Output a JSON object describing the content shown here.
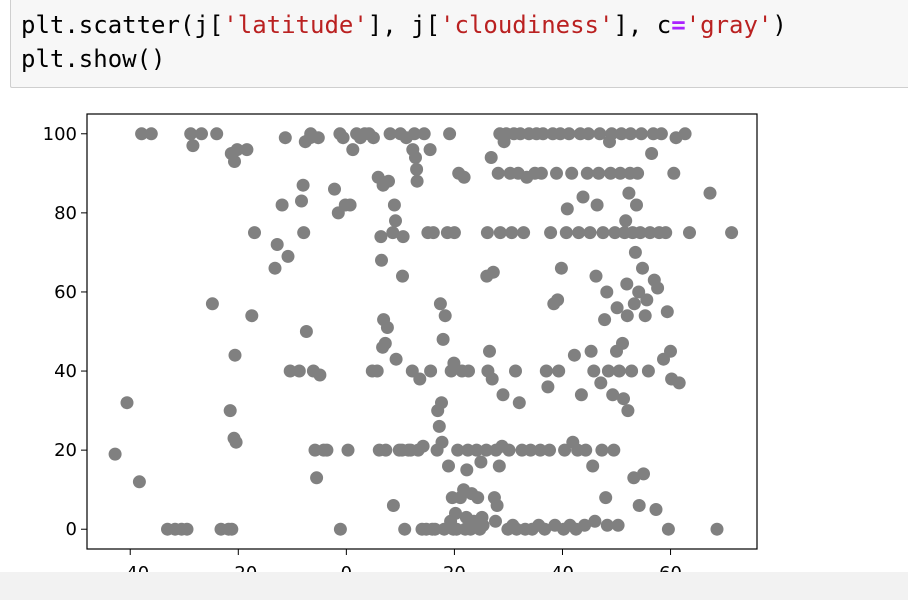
{
  "code": {
    "line1_pre": "plt.scatter(j[",
    "line1_str1": "'latitude'",
    "line1_mid": "], j[",
    "line1_str2": "'cloudiness'",
    "line1_mid2": "], c",
    "line1_op": "=",
    "line1_str3": "'gray'",
    "line1_post": ")",
    "line2": "plt.show()"
  },
  "chart_data": {
    "type": "scatter",
    "title": "",
    "xlabel": "",
    "ylabel": "",
    "xlim": [
      -48,
      76
    ],
    "ylim": [
      -5,
      105
    ],
    "xticks": [
      -40,
      -20,
      0,
      20,
      40,
      60
    ],
    "yticks": [
      0,
      20,
      40,
      60,
      80,
      100
    ],
    "grid": false,
    "point_color": "#808080",
    "points": [
      [
        -42.8,
        19
      ],
      [
        -40.6,
        32
      ],
      [
        -38.3,
        12
      ],
      [
        -37.9,
        100
      ],
      [
        -36.1,
        100
      ],
      [
        -33.1,
        0
      ],
      [
        -31.7,
        0
      ],
      [
        -30.5,
        0
      ],
      [
        -29.5,
        0
      ],
      [
        -28.8,
        100
      ],
      [
        -28.4,
        97
      ],
      [
        -26.8,
        100
      ],
      [
        -24.8,
        57
      ],
      [
        -24.0,
        100
      ],
      [
        -23.2,
        0
      ],
      [
        -21.8,
        0
      ],
      [
        -21.2,
        0
      ],
      [
        -20.8,
        23
      ],
      [
        -20.6,
        44
      ],
      [
        -20.4,
        22
      ],
      [
        -21.3,
        95
      ],
      [
        -20.7,
        93
      ],
      [
        -20.2,
        96
      ],
      [
        -18.4,
        96
      ],
      [
        -17.5,
        54
      ],
      [
        -17.0,
        75
      ],
      [
        -21.5,
        30
      ],
      [
        -13.2,
        66
      ],
      [
        -12.8,
        72
      ],
      [
        -11.9,
        82
      ],
      [
        -11.3,
        99
      ],
      [
        -10.8,
        69
      ],
      [
        -10.4,
        40
      ],
      [
        -8.7,
        40
      ],
      [
        -8.3,
        83
      ],
      [
        -8.0,
        87
      ],
      [
        -7.9,
        75
      ],
      [
        -7.4,
        50
      ],
      [
        -7.6,
        98
      ],
      [
        -6.6,
        100
      ],
      [
        -6.1,
        40
      ],
      [
        -6.7,
        99
      ],
      [
        -5.8,
        20
      ],
      [
        -5.5,
        13
      ],
      [
        -5.2,
        99
      ],
      [
        -4.9,
        39
      ],
      [
        -4.2,
        20
      ],
      [
        -3.6,
        20
      ],
      [
        -2.2,
        86
      ],
      [
        -1.5,
        80
      ],
      [
        -1.2,
        100
      ],
      [
        -1.1,
        0
      ],
      [
        -0.6,
        99
      ],
      [
        -0.2,
        82
      ],
      [
        0.7,
        82
      ],
      [
        0.3,
        20
      ],
      [
        1.2,
        96
      ],
      [
        1.9,
        100
      ],
      [
        2.6,
        99
      ],
      [
        3.4,
        100
      ],
      [
        4.2,
        100
      ],
      [
        4.8,
        40
      ],
      [
        5.0,
        99
      ],
      [
        5.7,
        40
      ],
      [
        5.9,
        89
      ],
      [
        6.1,
        20
      ],
      [
        6.4,
        74
      ],
      [
        6.7,
        46
      ],
      [
        6.8,
        87
      ],
      [
        7.2,
        47
      ],
      [
        6.5,
        68
      ],
      [
        6.9,
        53
      ],
      [
        7.3,
        20
      ],
      [
        7.8,
        88
      ],
      [
        7.6,
        51
      ],
      [
        8.1,
        100
      ],
      [
        8.6,
        75
      ],
      [
        8.9,
        82
      ],
      [
        8.7,
        6
      ],
      [
        9.2,
        43
      ],
      [
        9.1,
        78
      ],
      [
        9.8,
        20
      ],
      [
        10.0,
        100
      ],
      [
        10.3,
        20
      ],
      [
        10.5,
        74
      ],
      [
        10.8,
        0
      ],
      [
        10.4,
        64
      ],
      [
        11.1,
        99
      ],
      [
        11.5,
        20
      ],
      [
        11.9,
        20
      ],
      [
        12.2,
        40
      ],
      [
        12.6,
        100
      ],
      [
        12.3,
        96
      ],
      [
        12.8,
        94
      ],
      [
        13.0,
        91
      ],
      [
        13.3,
        20
      ],
      [
        13.6,
        38
      ],
      [
        13.1,
        88
      ],
      [
        14.2,
        21
      ],
      [
        14.0,
        0
      ],
      [
        14.4,
        100
      ],
      [
        14.8,
        0
      ],
      [
        15.1,
        75
      ],
      [
        15.5,
        96
      ],
      [
        15.6,
        40
      ],
      [
        15.9,
        0
      ],
      [
        16.1,
        75
      ],
      [
        16.4,
        0
      ],
      [
        16.8,
        20
      ],
      [
        16.9,
        30
      ],
      [
        17.2,
        26
      ],
      [
        17.4,
        57
      ],
      [
        17.6,
        32
      ],
      [
        17.7,
        22
      ],
      [
        17.9,
        48
      ],
      [
        18.1,
        0
      ],
      [
        18.3,
        54
      ],
      [
        18.7,
        75
      ],
      [
        18.9,
        16
      ],
      [
        19.1,
        100
      ],
      [
        19.3,
        2
      ],
      [
        19.4,
        40
      ],
      [
        19.6,
        8
      ],
      [
        19.8,
        0
      ],
      [
        19.9,
        42
      ],
      [
        20.0,
        75
      ],
      [
        20.2,
        4
      ],
      [
        20.4,
        0
      ],
      [
        20.6,
        20
      ],
      [
        20.8,
        90
      ],
      [
        21.1,
        8
      ],
      [
        21.4,
        40
      ],
      [
        21.7,
        10
      ],
      [
        21.8,
        89
      ],
      [
        22.0,
        0
      ],
      [
        22.2,
        3
      ],
      [
        22.3,
        15
      ],
      [
        22.5,
        20
      ],
      [
        22.6,
        40
      ],
      [
        23.0,
        0
      ],
      [
        23.2,
        9
      ],
      [
        23.6,
        2
      ],
      [
        23.9,
        1
      ],
      [
        24.1,
        20
      ],
      [
        24.3,
        8
      ],
      [
        24.7,
        0
      ],
      [
        24.9,
        17
      ],
      [
        25.1,
        3
      ],
      [
        25.3,
        1
      ],
      [
        25.9,
        20
      ],
      [
        26.0,
        64
      ],
      [
        26.1,
        75
      ],
      [
        26.2,
        40
      ],
      [
        26.5,
        45
      ],
      [
        26.8,
        94
      ],
      [
        27.0,
        38
      ],
      [
        27.2,
        65
      ],
      [
        27.4,
        8
      ],
      [
        27.6,
        2
      ],
      [
        27.7,
        20
      ],
      [
        27.9,
        6
      ],
      [
        28.1,
        90
      ],
      [
        28.3,
        16
      ],
      [
        28.5,
        75
      ],
      [
        28.4,
        100
      ],
      [
        28.8,
        21
      ],
      [
        29.0,
        34
      ],
      [
        29.2,
        98
      ],
      [
        29.6,
        100
      ],
      [
        29.9,
        0
      ],
      [
        30.1,
        20
      ],
      [
        30.3,
        90
      ],
      [
        30.6,
        75
      ],
      [
        30.8,
        1
      ],
      [
        31.0,
        100
      ],
      [
        31.3,
        40
      ],
      [
        31.5,
        0
      ],
      [
        31.8,
        90
      ],
      [
        32.0,
        32
      ],
      [
        32.2,
        100
      ],
      [
        32.5,
        20
      ],
      [
        32.8,
        75
      ],
      [
        33.1,
        0
      ],
      [
        33.4,
        89
      ],
      [
        33.8,
        100
      ],
      [
        34.1,
        20
      ],
      [
        34.4,
        0
      ],
      [
        34.9,
        90
      ],
      [
        35.2,
        100
      ],
      [
        35.6,
        1
      ],
      [
        35.9,
        20
      ],
      [
        36.1,
        90
      ],
      [
        36.4,
        100
      ],
      [
        36.7,
        0
      ],
      [
        37.0,
        40
      ],
      [
        37.3,
        36
      ],
      [
        37.6,
        20
      ],
      [
        37.8,
        75
      ],
      [
        38.2,
        100
      ],
      [
        38.4,
        57
      ],
      [
        38.6,
        1
      ],
      [
        38.9,
        90
      ],
      [
        39.1,
        58
      ],
      [
        39.3,
        40
      ],
      [
        39.6,
        100
      ],
      [
        39.8,
        66
      ],
      [
        40.2,
        0
      ],
      [
        40.4,
        20
      ],
      [
        40.7,
        75
      ],
      [
        40.9,
        81
      ],
      [
        41.2,
        100
      ],
      [
        41.4,
        1
      ],
      [
        41.7,
        90
      ],
      [
        41.9,
        22
      ],
      [
        42.2,
        44
      ],
      [
        42.5,
        0
      ],
      [
        42.8,
        20
      ],
      [
        43.0,
        75
      ],
      [
        43.3,
        100
      ],
      [
        43.5,
        34
      ],
      [
        43.8,
        84
      ],
      [
        44.1,
        1
      ],
      [
        44.3,
        20
      ],
      [
        44.6,
        90
      ],
      [
        44.8,
        100
      ],
      [
        45.1,
        75
      ],
      [
        45.3,
        45
      ],
      [
        45.6,
        16
      ],
      [
        45.8,
        40
      ],
      [
        46.0,
        2
      ],
      [
        46.2,
        64
      ],
      [
        46.4,
        82
      ],
      [
        46.7,
        90
      ],
      [
        46.9,
        100
      ],
      [
        47.1,
        37
      ],
      [
        47.3,
        20
      ],
      [
        47.5,
        75
      ],
      [
        47.8,
        53
      ],
      [
        48.0,
        8
      ],
      [
        48.2,
        60
      ],
      [
        48.3,
        1
      ],
      [
        48.5,
        40
      ],
      [
        48.7,
        98
      ],
      [
        48.9,
        90
      ],
      [
        49.1,
        100
      ],
      [
        49.3,
        34
      ],
      [
        49.5,
        20
      ],
      [
        49.7,
        75
      ],
      [
        50.0,
        45
      ],
      [
        50.1,
        56
      ],
      [
        50.3,
        1
      ],
      [
        50.5,
        40
      ],
      [
        50.7,
        90
      ],
      [
        50.9,
        100
      ],
      [
        51.1,
        47
      ],
      [
        51.3,
        33
      ],
      [
        51.5,
        75
      ],
      [
        51.7,
        78
      ],
      [
        51.9,
        62
      ],
      [
        52.0,
        54
      ],
      [
        52.1,
        30
      ],
      [
        52.3,
        85
      ],
      [
        52.5,
        90
      ],
      [
        52.6,
        100
      ],
      [
        52.8,
        40
      ],
      [
        53.0,
        75
      ],
      [
        53.2,
        13
      ],
      [
        53.3,
        57
      ],
      [
        53.5,
        70
      ],
      [
        53.7,
        82
      ],
      [
        53.9,
        90
      ],
      [
        54.1,
        60
      ],
      [
        54.2,
        6
      ],
      [
        54.4,
        75
      ],
      [
        54.6,
        100
      ],
      [
        54.8,
        66
      ],
      [
        55.0,
        14
      ],
      [
        55.3,
        54
      ],
      [
        55.6,
        58
      ],
      [
        55.9,
        40
      ],
      [
        56.2,
        75
      ],
      [
        56.5,
        95
      ],
      [
        56.8,
        100
      ],
      [
        57.0,
        63
      ],
      [
        57.3,
        5
      ],
      [
        57.6,
        61
      ],
      [
        57.9,
        75
      ],
      [
        58.3,
        100
      ],
      [
        58.7,
        43
      ],
      [
        59.1,
        75
      ],
      [
        59.4,
        55
      ],
      [
        59.6,
        0
      ],
      [
        60.0,
        45
      ],
      [
        60.2,
        38
      ],
      [
        60.6,
        90
      ],
      [
        61.0,
        99
      ],
      [
        61.6,
        37
      ],
      [
        62.7,
        100
      ],
      [
        63.5,
        75
      ],
      [
        67.3,
        85
      ],
      [
        68.6,
        0
      ],
      [
        71.3,
        75
      ]
    ]
  }
}
